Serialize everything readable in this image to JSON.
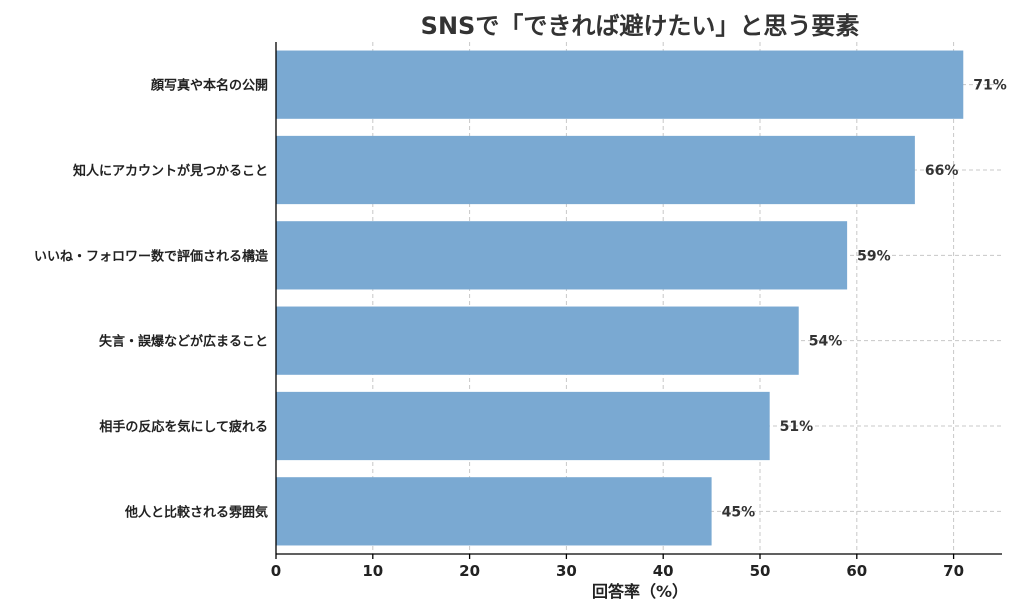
{
  "chart_data": {
    "type": "bar",
    "orientation": "horizontal",
    "title": "SNSで「できれば避けたい」と思う要素",
    "xlabel": "回答率（%）",
    "ylabel": "",
    "xlim": [
      0,
      75
    ],
    "x_ticks": [
      0,
      10,
      20,
      30,
      40,
      50,
      60,
      70
    ],
    "grid": true,
    "categories": [
      "顔写真や本名の公開",
      "知人にアカウントが見つかること",
      "いいね・フォロワー数で評価される構造",
      "失言・誤爆などが広まること",
      "相手の反応を気にして疲れる",
      "他人と比較される雰囲気"
    ],
    "values": [
      71,
      66,
      59,
      54,
      51,
      45
    ],
    "data_labels": [
      "71%",
      "66%",
      "59%",
      "54%",
      "51%",
      "45%"
    ],
    "bar_color": "#7aa9d2"
  }
}
